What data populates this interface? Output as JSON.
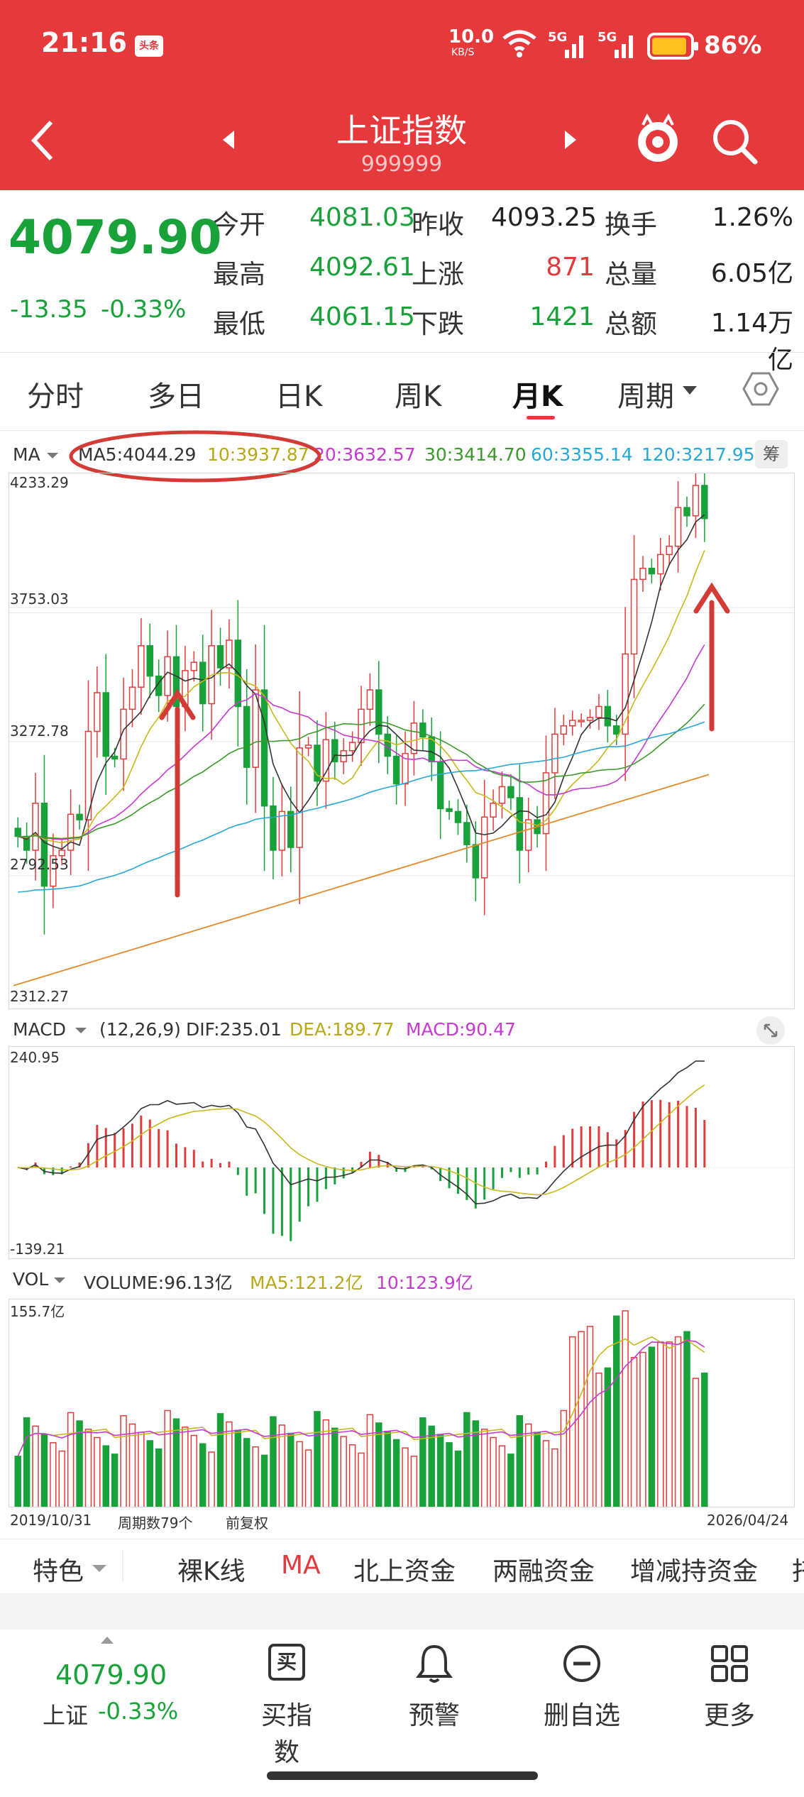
{
  "status": {
    "time": "21:16",
    "toutiao_badge": "头条",
    "net_speed": "10.0",
    "net_unit": "KB/S",
    "net1": "5G",
    "net2": "5G",
    "battery": "86%"
  },
  "nav": {
    "title": "上证指数",
    "code": "999999"
  },
  "quote": {
    "price": "4079.90",
    "change": "-13.35",
    "change_pct": "-0.33%",
    "stats": [
      {
        "l1": "今开",
        "v1": "4081.03",
        "l2": "昨收",
        "v2": "4093.25",
        "l3": "换手",
        "v3": "1.26%"
      },
      {
        "l1": "最高",
        "v1": "4092.61",
        "l2": "上涨",
        "v2": "871",
        "l3": "总量",
        "v3": "6.05亿"
      },
      {
        "l1": "最低",
        "v1": "4061.15",
        "l2": "下跌",
        "v2": "1421",
        "l3": "总额",
        "v3": "1.14万亿"
      }
    ]
  },
  "tabs": [
    "分时",
    "多日",
    "日K",
    "周K",
    "月K",
    "周期"
  ],
  "active_tab": "月K",
  "ma_legend": {
    "label": "MA",
    "ma5": "MA5:4044.29",
    "ma10": "10:3937.87",
    "ma20": "20:3632.57",
    "ma30": "30:3414.70",
    "ma60": "60:3355.14",
    "ma120": "120:3217.95",
    "chip": "筹"
  },
  "price_axis": [
    "4233.29",
    "3753.03",
    "3272.78",
    "2792.53",
    "2312.27"
  ],
  "macd_legend": {
    "label": "MACD",
    "params": "(12,26,9)",
    "dif": "DIF:235.01",
    "dea": "DEA:189.77",
    "macd": "MACD:90.47"
  },
  "macd_axis": [
    "240.95",
    "-139.21"
  ],
  "vol_legend": {
    "label": "VOL",
    "volume": "VOLUME:96.13亿",
    "ma5": "MA5:121.2亿",
    "ma10": "10:123.9亿"
  },
  "vol_axis": "155.7亿",
  "footer_axis": {
    "start": "2019/10/31",
    "count": "周期数79个",
    "mode": "前复权",
    "end": "2026/04/24"
  },
  "feature_bar": [
    "特色",
    "裸K线",
    "MA",
    "北上资金",
    "两融资金",
    "增减持资金",
    "托"
  ],
  "bottom": {
    "price": "4079.90",
    "index": "上证",
    "pct": "-0.33%",
    "buy": "买指数",
    "buy_icon": "买",
    "alert": "预警",
    "remove": "删自选",
    "more": "更多"
  },
  "colors": {
    "up": "#e13c3c",
    "down": "#19a13a",
    "brand": "#e5393b",
    "ma5": "#333333",
    "ma10": "#c9b81a",
    "ma20": "#c63ad2",
    "ma30": "#3a9a2a",
    "ma60": "#27a7d8",
    "ma120": "#e58a2a"
  },
  "chart_data": [
    {
      "type": "candlestick",
      "title": "上证指数 月K",
      "ylim": [
        2312.27,
        4233.29
      ],
      "x_range": [
        "2019/10/31",
        "2026/04/24"
      ],
      "periods": 79,
      "ohlc_trend": [
        2930,
        2880,
        3050,
        2750,
        2860,
        2880,
        3010,
        2990,
        3310,
        3450,
        3220,
        3210,
        3390,
        3470,
        3620,
        3510,
        3440,
        3580,
        3400,
        3530,
        3560,
        3410,
        3620,
        3540,
        3640,
        3400,
        3180,
        3460,
        3040,
        2880,
        3020,
        2890,
        3250,
        3260,
        3130,
        3280,
        3200,
        3240,
        3270,
        3390,
        3460,
        3300,
        3220,
        3120,
        3230,
        3340,
        3290,
        3200,
        3030,
        3020,
        2980,
        2900,
        2780,
        3000,
        3050,
        3110,
        3070,
        2880,
        2990,
        2940,
        3160,
        3300,
        3330,
        3350,
        3350,
        3360,
        3400,
        3330,
        3300,
        3590,
        3860,
        3900,
        3880,
        3950,
        3980,
        4120,
        4090,
        4200,
        4080
      ],
      "ma_last": {
        "MA5": 4044.29,
        "MA10": 3937.87,
        "MA20": 3632.57,
        "MA30": 3414.7,
        "MA60": 3355.14,
        "MA120": 3217.95
      }
    },
    {
      "type": "bar",
      "title": "MACD",
      "ylim": [
        -139.21,
        240.95
      ],
      "DIF": 235.01,
      "DEA": 189.77,
      "MACD": 90.47
    },
    {
      "type": "bar",
      "title": "VOL",
      "ylim": [
        0,
        155.7
      ],
      "VOLUME": 96.13,
      "MA5": 121.2,
      "MA10": 123.9
    }
  ]
}
